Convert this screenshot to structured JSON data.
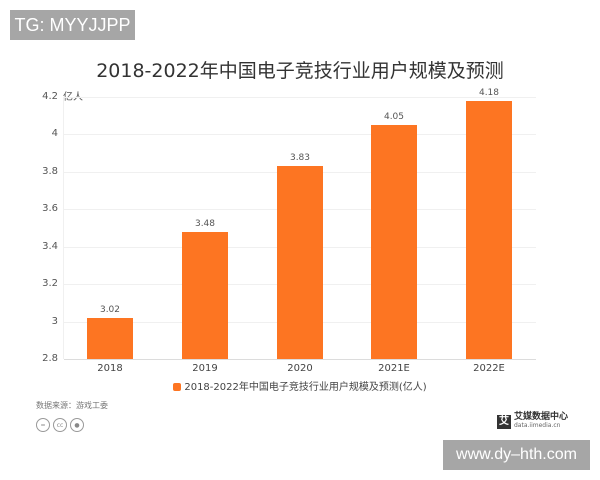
{
  "watermark_top": "TG: MYYJJPP",
  "watermark_bottom": "www.dy–hth.com",
  "chart_data": {
    "type": "bar",
    "title": "2018-2022年中国电子竞技行业用户规模及预测",
    "categories": [
      "2018",
      "2019",
      "2020",
      "2021E",
      "2022E"
    ],
    "values": [
      3.02,
      3.48,
      3.83,
      4.05,
      4.18
    ],
    "value_labels": [
      "3.02",
      "3.48",
      "3.83",
      "4.05",
      "4.18"
    ],
    "series": [
      {
        "name": "2018-2022年中国电子竞技行业用户规模及预测(亿人)",
        "values": [
          3.02,
          3.48,
          3.83,
          4.05,
          4.18
        ]
      }
    ],
    "xlabel": "",
    "ylabel": "亿人",
    "ylim": [
      2.8,
      4.2
    ],
    "yticks": [
      "4.2",
      "4",
      "3.8",
      "3.6",
      "3.4",
      "3.2",
      "3",
      "2.8"
    ],
    "grid": true,
    "legend_position": "bottom",
    "bar_color": "#fd7522"
  },
  "footer": {
    "source": "数据来源：游戏工委",
    "license_icons": [
      "equals-icon",
      "cc-icon",
      "person-icon"
    ],
    "brand_name": "艾媒数据中心",
    "brand_url": "data.iimedia.cn",
    "brand_logo": "艾"
  }
}
